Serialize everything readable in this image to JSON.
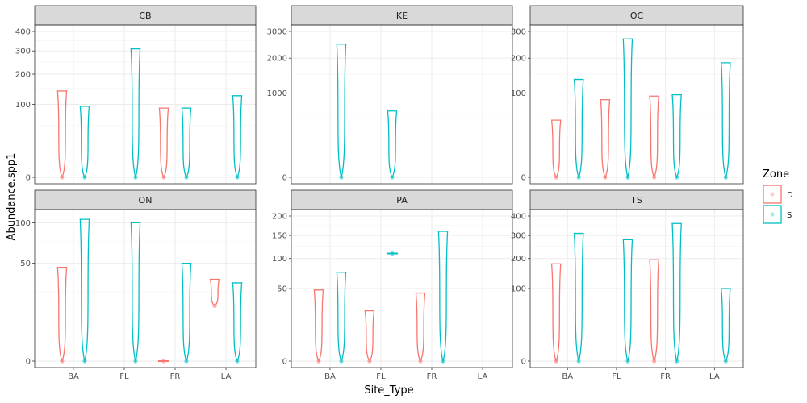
{
  "chart_data": {
    "type": "violin",
    "facet_variable": "Site",
    "xlabel": "Site_Type",
    "ylabel": "Abundance.spp1",
    "x_categories": [
      "BA",
      "FL",
      "FR",
      "LA"
    ],
    "y_scale": "sqrt",
    "grid": true,
    "legend": {
      "title": "Zone",
      "position": "right",
      "entries": [
        {
          "label": "D",
          "color": "#F8766D"
        },
        {
          "label": "S",
          "color": "#00BFC4"
        }
      ]
    },
    "panels": [
      {
        "title": "CB",
        "ylim": [
          0,
          400
        ],
        "y_ticks": [
          0,
          100,
          200,
          300,
          400
        ],
        "violins": [
          {
            "x": "BA",
            "zone": "D",
            "min": 0,
            "max": 140
          },
          {
            "x": "BA",
            "zone": "S",
            "min": 0,
            "max": 95
          },
          {
            "x": "FL",
            "zone": "S",
            "min": 0,
            "max": 310
          },
          {
            "x": "FR",
            "zone": "D",
            "min": 0,
            "max": 90
          },
          {
            "x": "FR",
            "zone": "S",
            "min": 0,
            "max": 90
          },
          {
            "x": "LA",
            "zone": "S",
            "min": 0,
            "max": 125
          }
        ]
      },
      {
        "title": "KE",
        "ylim": [
          0,
          3000
        ],
        "y_ticks": [
          0,
          1000,
          2000,
          3000
        ],
        "violins": [
          {
            "x": "BA",
            "zone": "S",
            "min": 0,
            "max": 2500
          },
          {
            "x": "FL",
            "zone": "S",
            "min": 0,
            "max": 620
          }
        ]
      },
      {
        "title": "OC",
        "ylim": [
          0,
          300
        ],
        "y_ticks": [
          0,
          100,
          200,
          300
        ],
        "violins": [
          {
            "x": "BA",
            "zone": "D",
            "min": 0,
            "max": 46
          },
          {
            "x": "BA",
            "zone": "S",
            "min": 0,
            "max": 135
          },
          {
            "x": "FL",
            "zone": "D",
            "min": 0,
            "max": 85
          },
          {
            "x": "FL",
            "zone": "S",
            "min": 0,
            "max": 270
          },
          {
            "x": "FR",
            "zone": "D",
            "min": 0,
            "max": 93
          },
          {
            "x": "FR",
            "zone": "S",
            "min": 0,
            "max": 96
          },
          {
            "x": "LA",
            "zone": "S",
            "min": 0,
            "max": 185
          }
        ]
      },
      {
        "title": "ON",
        "ylim": [
          0,
          110
        ],
        "y_ticks": [
          0,
          50,
          100
        ],
        "violins": [
          {
            "x": "BA",
            "zone": "D",
            "min": 0,
            "max": 46
          },
          {
            "x": "BA",
            "zone": "S",
            "min": 0,
            "max": 105
          },
          {
            "x": "FL",
            "zone": "S",
            "min": 0,
            "max": 100
          },
          {
            "x": "FR",
            "zone": "D",
            "min": 0,
            "max": 0
          },
          {
            "x": "FR",
            "zone": "S",
            "min": 0,
            "max": 50
          },
          {
            "x": "LA",
            "zone": "D",
            "min": 16,
            "max": 35
          },
          {
            "x": "LA",
            "zone": "S",
            "min": 0,
            "max": 32
          }
        ]
      },
      {
        "title": "PA",
        "ylim": [
          0,
          200
        ],
        "y_ticks": [
          0,
          50,
          100,
          150,
          200
        ],
        "violins": [
          {
            "x": "BA",
            "zone": "D",
            "min": 0,
            "max": 48
          },
          {
            "x": "BA",
            "zone": "S",
            "min": 0,
            "max": 75
          },
          {
            "x": "FL",
            "zone": "D",
            "min": 0,
            "max": 24
          },
          {
            "x": "FL",
            "zone": "S",
            "min": 110,
            "max": 110
          },
          {
            "x": "FR",
            "zone": "D",
            "min": 0,
            "max": 44
          },
          {
            "x": "FR",
            "zone": "S",
            "min": 0,
            "max": 160
          }
        ]
      },
      {
        "title": "TS",
        "ylim": [
          0,
          400
        ],
        "y_ticks": [
          0,
          100,
          200,
          300,
          400
        ],
        "violins": [
          {
            "x": "BA",
            "zone": "D",
            "min": 0,
            "max": 180
          },
          {
            "x": "BA",
            "zone": "S",
            "min": 0,
            "max": 310
          },
          {
            "x": "FL",
            "zone": "S",
            "min": 0,
            "max": 280
          },
          {
            "x": "FR",
            "zone": "D",
            "min": 0,
            "max": 195
          },
          {
            "x": "FR",
            "zone": "S",
            "min": 0,
            "max": 360
          },
          {
            "x": "LA",
            "zone": "S",
            "min": 0,
            "max": 100
          }
        ]
      }
    ]
  }
}
